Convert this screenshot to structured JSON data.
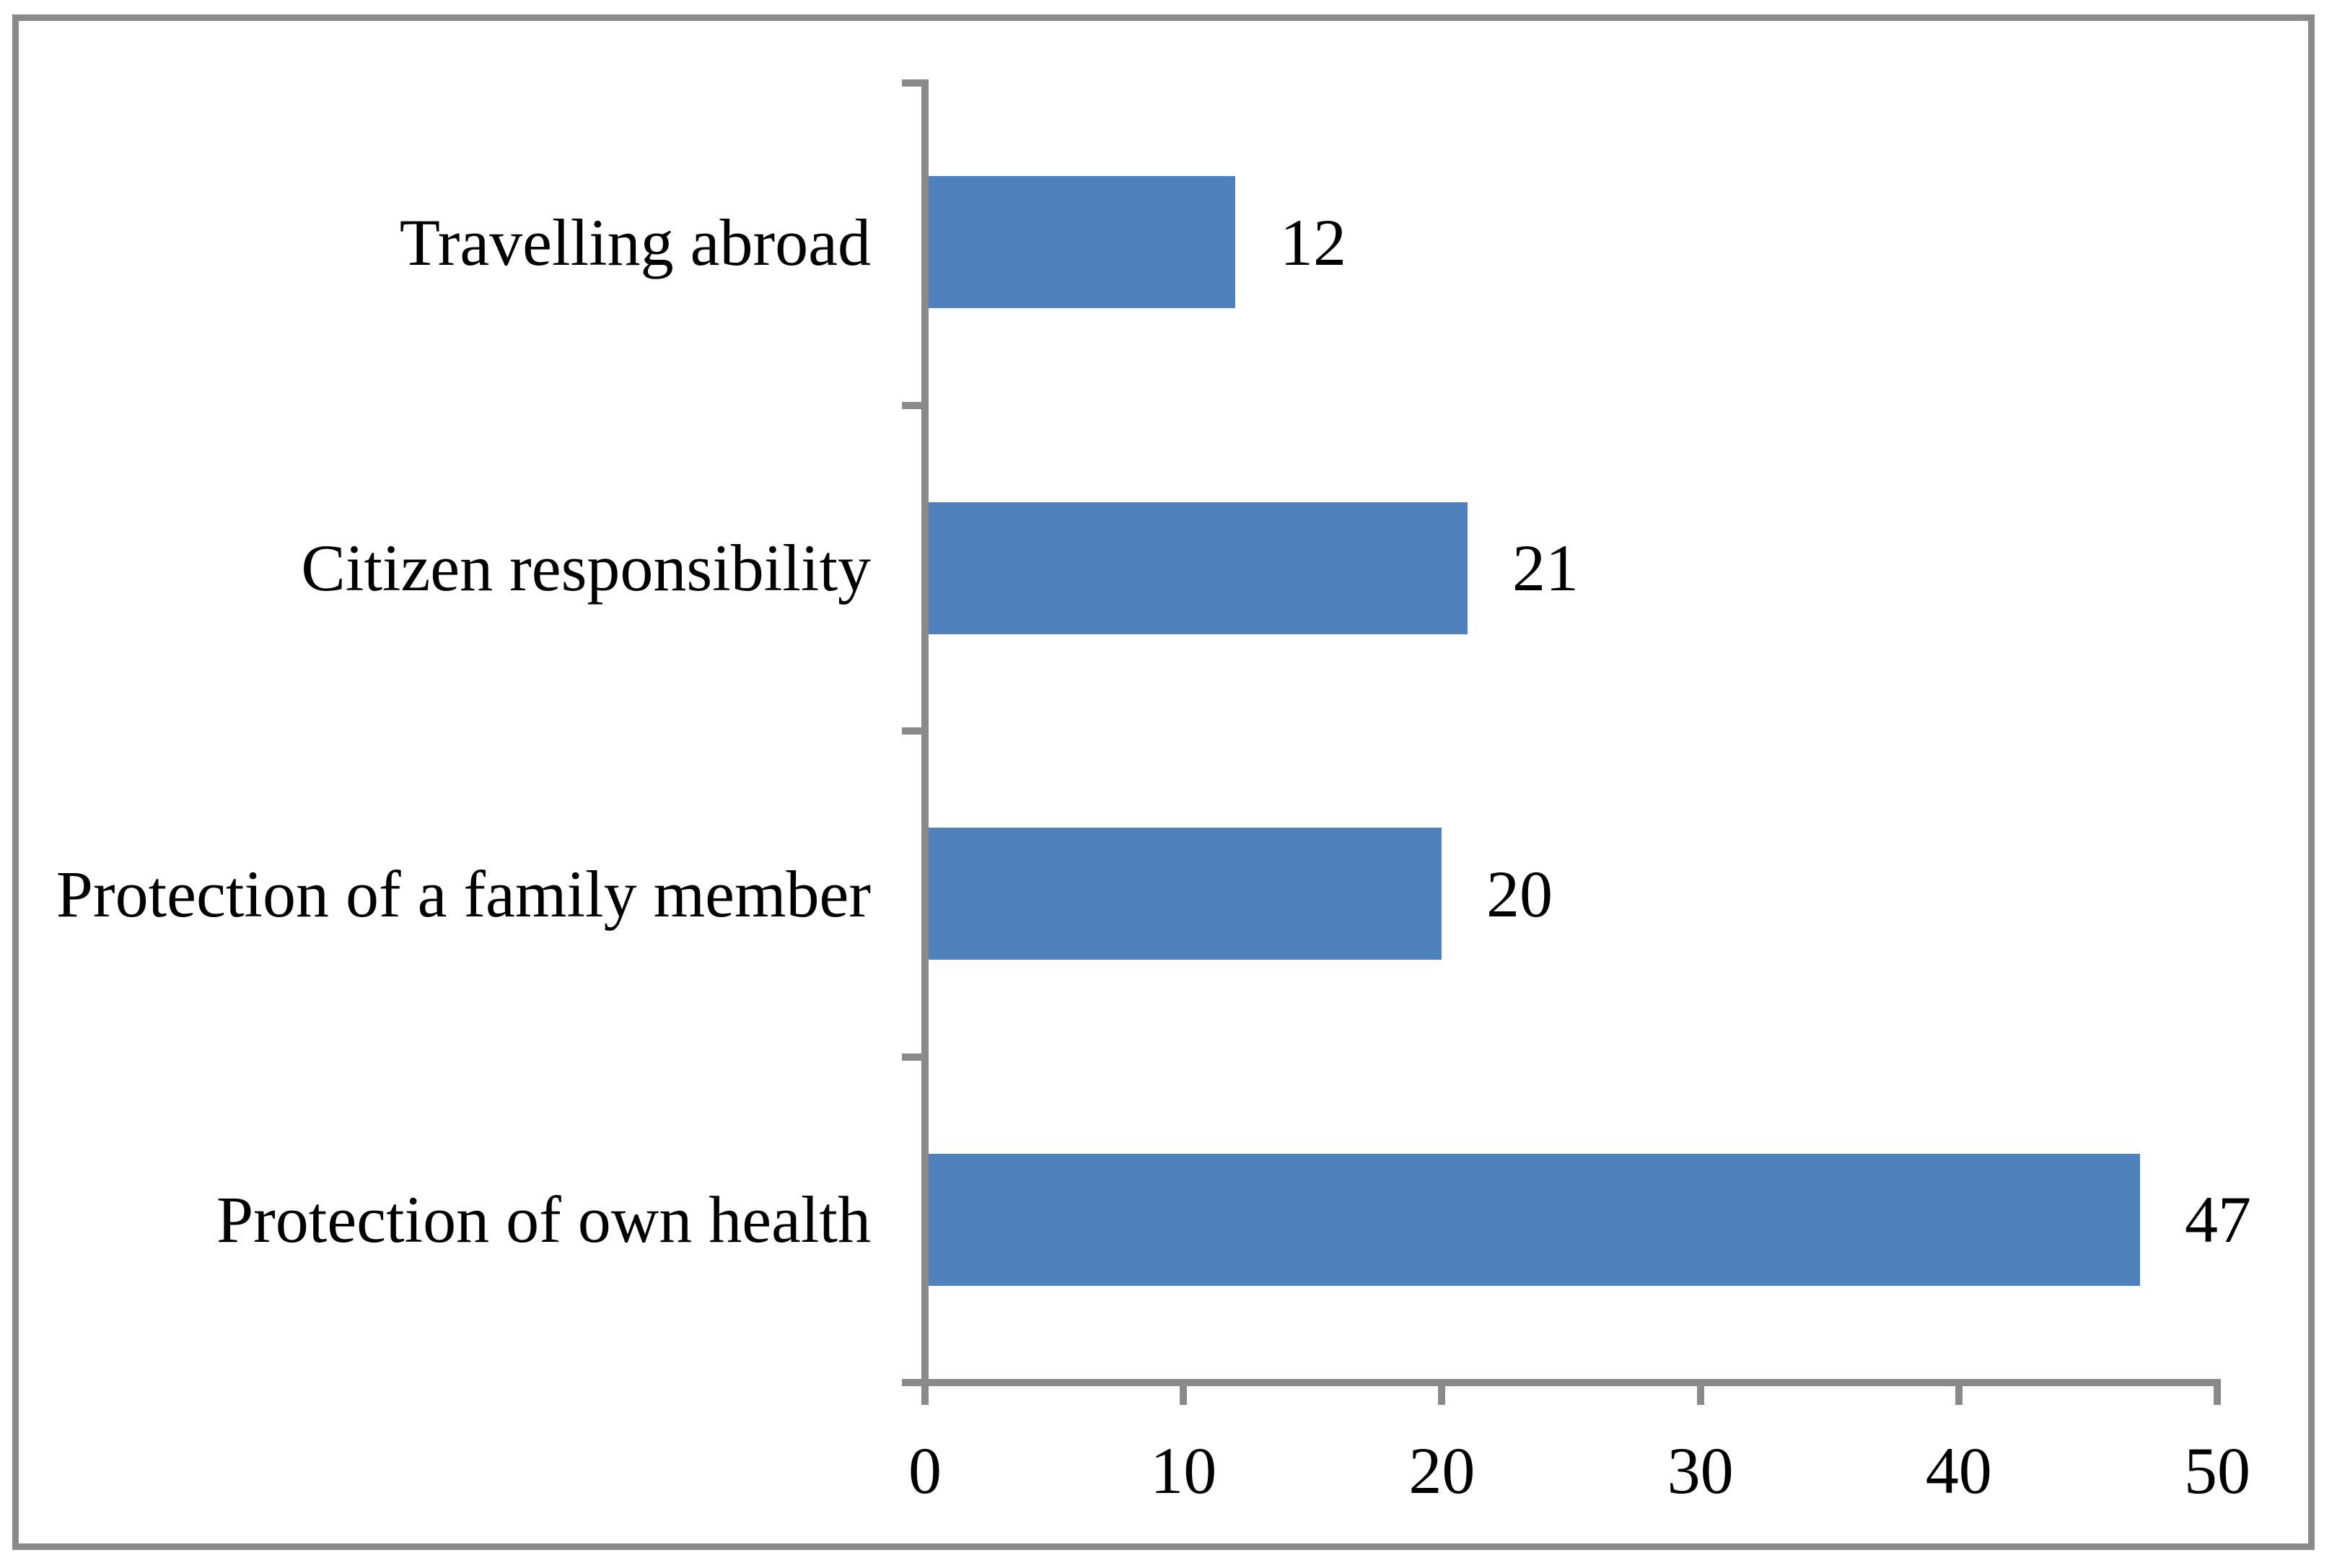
{
  "chart_data": {
    "type": "bar",
    "orientation": "horizontal",
    "title": "",
    "xlabel": "",
    "ylabel": "",
    "categories": [
      "Travelling abroad",
      "Citizen responsibility",
      "Protection of a family member",
      "Protection of own health"
    ],
    "values": [
      12,
      21,
      20,
      47
    ],
    "data_labels": [
      "12",
      "21",
      "20",
      "47"
    ],
    "x_ticks": [
      "0",
      "10",
      "20",
      "30",
      "40",
      "50"
    ],
    "xlim": [
      0,
      50
    ],
    "x_tick_step": 10,
    "grid": false,
    "legend": false,
    "data_labels_shown": true,
    "colors": {
      "bar": "#4F81BD",
      "axis": "#8A8A8A",
      "frame_border": "#8A8A8A",
      "text": "#000000",
      "background": "#FFFFFF"
    }
  }
}
